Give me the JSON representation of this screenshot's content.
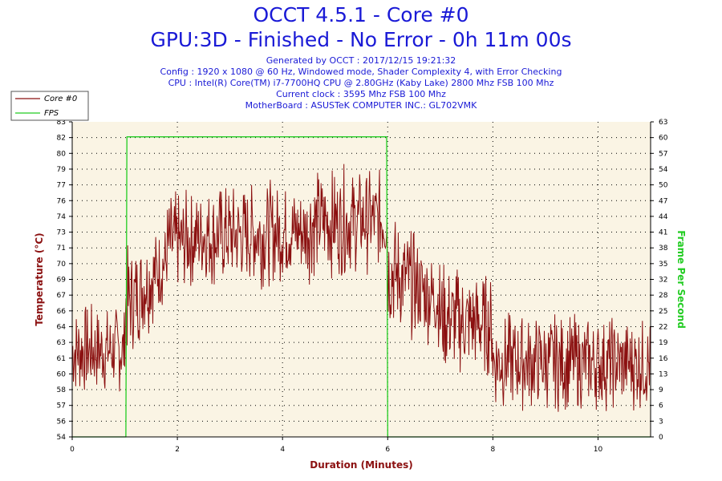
{
  "chart_data": {
    "type": "line",
    "title": "OCCT 4.5.1 - Core #0",
    "subtitle": "GPU:3D - Finished - No Error - 0h 11m 00s",
    "info_lines": [
      "Generated by OCCT : 2017/12/15 19:21:32",
      "Config : 1920 x 1080 @ 60 Hz, Windowed mode, Shader Complexity 4, with Error Checking",
      "CPU : Intel(R) Core(TM) i7-7700HQ CPU @ 2.80GHz (Kaby Lake) 2800 Mhz FSB 100 Mhz",
      "Current clock : 3595 Mhz FSB 100 Mhz",
      "MotherBoard : ASUSTeK COMPUTER INC.: GL702VMK"
    ],
    "xlabel": "Duration (Minutes)",
    "ylabel": "Temperature (°C)",
    "y2label": "Frame Per Second",
    "xlim": [
      0,
      11
    ],
    "ylim": [
      54,
      83
    ],
    "y2lim": [
      0,
      63
    ],
    "x_ticks": [
      "0",
      "2",
      "4",
      "6",
      "8",
      "10"
    ],
    "y_ticks": [
      "54",
      "56",
      "57",
      "58",
      "60",
      "61",
      "63",
      "64",
      "66",
      "67",
      "69",
      "70",
      "71",
      "73",
      "74",
      "76",
      "77",
      "79",
      "80",
      "82",
      "83"
    ],
    "y2_ticks": [
      "0",
      "3",
      "6",
      "9",
      "13",
      "16",
      "19",
      "22",
      "25",
      "28",
      "32",
      "35",
      "38",
      "41",
      "44",
      "47",
      "50",
      "54",
      "57",
      "60",
      "63"
    ],
    "grid": true,
    "legend_position": "top-left",
    "colors": {
      "temperature": "#8b1010",
      "fps": "#22cc22",
      "title": "#1a1ad6",
      "axis_label": "#8b1010",
      "plot_bg": "#faf4e4"
    },
    "series": [
      {
        "name": "Core #0",
        "axis": "left",
        "segments": [
          {
            "x": [
              0,
              1
            ],
            "y": [
              [
                57,
                67
              ],
              [
                57.5,
                66.5
              ]
            ]
          },
          {
            "x": [
              1,
              1.8
            ],
            "y": [
              [
                60,
                72
              ],
              [
                66,
                74.5
              ]
            ]
          },
          {
            "x": [
              1.8,
              2.6
            ],
            "y": [
              [
                66,
                77
              ],
              [
                68,
                77.5
              ]
            ]
          },
          {
            "x": [
              2.6,
              4.5
            ],
            "y": [
              [
                67,
                78
              ],
              [
                68,
                78
              ]
            ]
          },
          {
            "x": [
              4.5,
              6
            ],
            "y": [
              [
                68,
                79.5
              ],
              [
                69,
                79
              ]
            ]
          },
          {
            "x": [
              6,
              7
            ],
            "y": [
              [
                63,
                76
              ],
              [
                62,
                71
              ]
            ]
          },
          {
            "x": [
              7,
              8
            ],
            "y": [
              [
                59,
                71
              ],
              [
                59,
                69.5
              ]
            ]
          },
          {
            "x": [
              8,
              11
            ],
            "y": [
              [
                56,
                66
              ],
              [
                56,
                65.5
              ]
            ]
          }
        ]
      },
      {
        "name": "FPS",
        "axis": "right",
        "x": [
          0,
          1.02,
          1.04,
          5.98,
          6.0,
          11
        ],
        "y": [
          0,
          0,
          60,
          60,
          0,
          0
        ]
      }
    ]
  }
}
